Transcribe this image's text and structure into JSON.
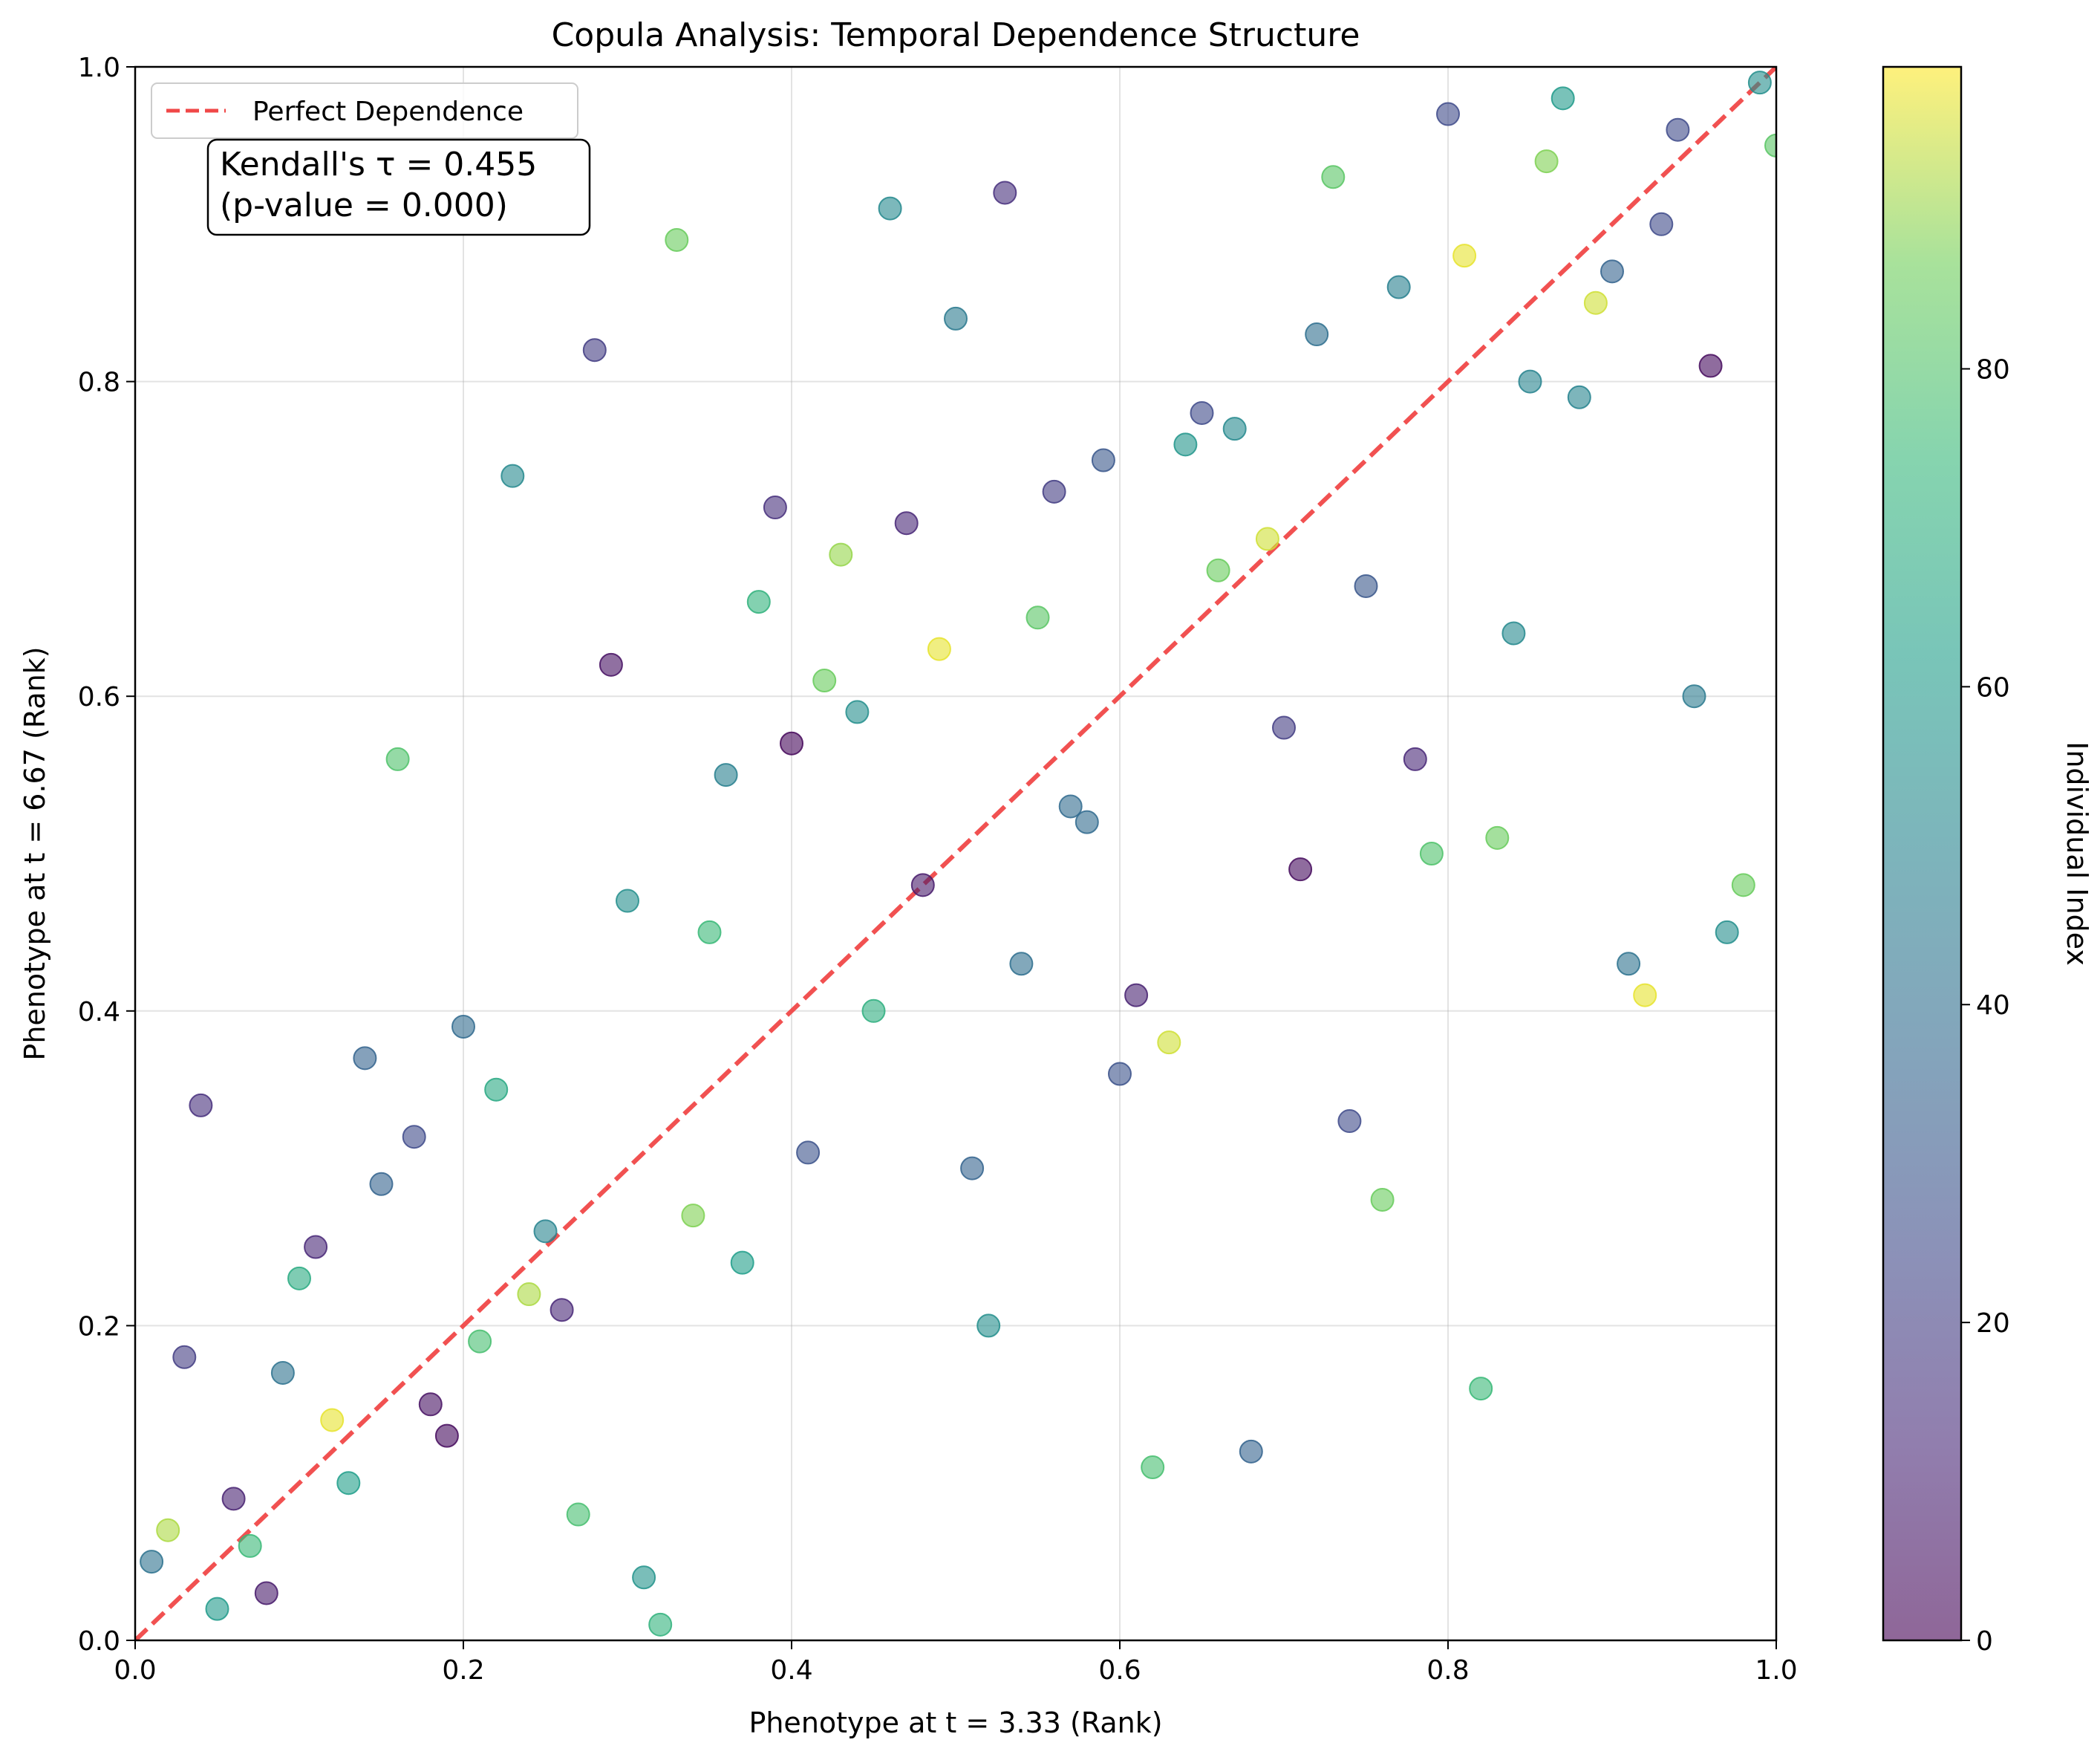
{
  "chart_data": {
    "type": "scatter",
    "title": "Copula Analysis: Temporal Dependence Structure",
    "xlabel": "Phenotype at t = 3.33 (Rank)",
    "ylabel": "Phenotype at t = 6.67 (Rank)",
    "xlim": [
      0,
      1
    ],
    "ylim": [
      0,
      1
    ],
    "xticks": [
      "0.0",
      "0.2",
      "0.4",
      "0.6",
      "0.8",
      "1.0"
    ],
    "yticks": [
      "0.0",
      "0.2",
      "0.4",
      "0.6",
      "0.8",
      "1.0"
    ],
    "grid": true,
    "legend": {
      "position": "top-left",
      "entries": [
        "Perfect Dependence"
      ]
    },
    "annotation": {
      "line1": "Kendall's τ = 0.455",
      "line2": "(p-value = 0.000)"
    },
    "colorbar": {
      "label": "Individual Index",
      "range": [
        0,
        99
      ],
      "ticks": [
        "0",
        "20",
        "40",
        "60",
        "80"
      ],
      "colormap": "viridis"
    },
    "reference_line": {
      "name": "Perfect Dependence",
      "x": [
        0,
        1
      ],
      "y": [
        0,
        1
      ],
      "color": "#f04848",
      "style": "dashed"
    },
    "points": [
      {
        "x": 0.01,
        "y": 0.05,
        "c": 42
      },
      {
        "x": 0.02,
        "y": 0.07,
        "c": 92
      },
      {
        "x": 0.03,
        "y": 0.18,
        "c": 20
      },
      {
        "x": 0.04,
        "y": 0.34,
        "c": 15
      },
      {
        "x": 0.05,
        "y": 0.02,
        "c": 60
      },
      {
        "x": 0.06,
        "y": 0.09,
        "c": 10
      },
      {
        "x": 0.07,
        "y": 0.06,
        "c": 75
      },
      {
        "x": 0.08,
        "y": 0.03,
        "c": 8
      },
      {
        "x": 0.09,
        "y": 0.17,
        "c": 42
      },
      {
        "x": 0.1,
        "y": 0.23,
        "c": 68
      },
      {
        "x": 0.11,
        "y": 0.25,
        "c": 12
      },
      {
        "x": 0.12,
        "y": 0.14,
        "c": 97
      },
      {
        "x": 0.13,
        "y": 0.1,
        "c": 62
      },
      {
        "x": 0.14,
        "y": 0.37,
        "c": 35
      },
      {
        "x": 0.15,
        "y": 0.29,
        "c": 35
      },
      {
        "x": 0.16,
        "y": 0.56,
        "c": 80
      },
      {
        "x": 0.17,
        "y": 0.32,
        "c": 25
      },
      {
        "x": 0.18,
        "y": 0.15,
        "c": 5
      },
      {
        "x": 0.19,
        "y": 0.13,
        "c": 3
      },
      {
        "x": 0.2,
        "y": 0.39,
        "c": 38
      },
      {
        "x": 0.21,
        "y": 0.19,
        "c": 78
      },
      {
        "x": 0.22,
        "y": 0.35,
        "c": 67
      },
      {
        "x": 0.23,
        "y": 0.74,
        "c": 52
      },
      {
        "x": 0.24,
        "y": 0.22,
        "c": 92
      },
      {
        "x": 0.25,
        "y": 0.26,
        "c": 50
      },
      {
        "x": 0.26,
        "y": 0.21,
        "c": 12
      },
      {
        "x": 0.27,
        "y": 0.08,
        "c": 78
      },
      {
        "x": 0.28,
        "y": 0.82,
        "c": 20
      },
      {
        "x": 0.29,
        "y": 0.62,
        "c": 5
      },
      {
        "x": 0.3,
        "y": 0.47,
        "c": 55
      },
      {
        "x": 0.31,
        "y": 0.04,
        "c": 57
      },
      {
        "x": 0.32,
        "y": 0.01,
        "c": 72
      },
      {
        "x": 0.33,
        "y": 0.89,
        "c": 85
      },
      {
        "x": 0.34,
        "y": 0.27,
        "c": 88
      },
      {
        "x": 0.35,
        "y": 0.45,
        "c": 75
      },
      {
        "x": 0.36,
        "y": 0.55,
        "c": 48
      },
      {
        "x": 0.37,
        "y": 0.24,
        "c": 62
      },
      {
        "x": 0.38,
        "y": 0.66,
        "c": 72
      },
      {
        "x": 0.39,
        "y": 0.72,
        "c": 15
      },
      {
        "x": 0.4,
        "y": 0.57,
        "c": 2
      },
      {
        "x": 0.41,
        "y": 0.31,
        "c": 28
      },
      {
        "x": 0.42,
        "y": 0.61,
        "c": 85
      },
      {
        "x": 0.43,
        "y": 0.69,
        "c": 90
      },
      {
        "x": 0.44,
        "y": 0.59,
        "c": 55
      },
      {
        "x": 0.45,
        "y": 0.4,
        "c": 70
      },
      {
        "x": 0.46,
        "y": 0.91,
        "c": 52
      },
      {
        "x": 0.47,
        "y": 0.71,
        "c": 12
      },
      {
        "x": 0.48,
        "y": 0.48,
        "c": 8
      },
      {
        "x": 0.49,
        "y": 0.63,
        "c": 97
      },
      {
        "x": 0.5,
        "y": 0.84,
        "c": 45
      },
      {
        "x": 0.51,
        "y": 0.3,
        "c": 35
      },
      {
        "x": 0.52,
        "y": 0.2,
        "c": 55
      },
      {
        "x": 0.53,
        "y": 0.92,
        "c": 15
      },
      {
        "x": 0.54,
        "y": 0.43,
        "c": 40
      },
      {
        "x": 0.55,
        "y": 0.65,
        "c": 82
      },
      {
        "x": 0.56,
        "y": 0.73,
        "c": 20
      },
      {
        "x": 0.57,
        "y": 0.53,
        "c": 38
      },
      {
        "x": 0.58,
        "y": 0.52,
        "c": 38
      },
      {
        "x": 0.59,
        "y": 0.75,
        "c": 30
      },
      {
        "x": 0.6,
        "y": 0.36,
        "c": 28
      },
      {
        "x": 0.61,
        "y": 0.41,
        "c": 10
      },
      {
        "x": 0.62,
        "y": 0.11,
        "c": 78
      },
      {
        "x": 0.63,
        "y": 0.38,
        "c": 95
      },
      {
        "x": 0.64,
        "y": 0.76,
        "c": 58
      },
      {
        "x": 0.65,
        "y": 0.78,
        "c": 25
      },
      {
        "x": 0.66,
        "y": 0.68,
        "c": 85
      },
      {
        "x": 0.67,
        "y": 0.77,
        "c": 52
      },
      {
        "x": 0.68,
        "y": 0.12,
        "c": 35
      },
      {
        "x": 0.69,
        "y": 0.7,
        "c": 95
      },
      {
        "x": 0.7,
        "y": 0.58,
        "c": 20
      },
      {
        "x": 0.71,
        "y": 0.49,
        "c": 3
      },
      {
        "x": 0.72,
        "y": 0.83,
        "c": 40
      },
      {
        "x": 0.73,
        "y": 0.93,
        "c": 82
      },
      {
        "x": 0.74,
        "y": 0.33,
        "c": 25
      },
      {
        "x": 0.75,
        "y": 0.67,
        "c": 30
      },
      {
        "x": 0.76,
        "y": 0.28,
        "c": 85
      },
      {
        "x": 0.77,
        "y": 0.86,
        "c": 48
      },
      {
        "x": 0.78,
        "y": 0.56,
        "c": 12
      },
      {
        "x": 0.79,
        "y": 0.5,
        "c": 80
      },
      {
        "x": 0.8,
        "y": 0.97,
        "c": 25
      },
      {
        "x": 0.81,
        "y": 0.88,
        "c": 97
      },
      {
        "x": 0.82,
        "y": 0.16,
        "c": 75
      },
      {
        "x": 0.83,
        "y": 0.51,
        "c": 85
      },
      {
        "x": 0.84,
        "y": 0.64,
        "c": 52
      },
      {
        "x": 0.85,
        "y": 0.8,
        "c": 50
      },
      {
        "x": 0.86,
        "y": 0.94,
        "c": 88
      },
      {
        "x": 0.87,
        "y": 0.98,
        "c": 60
      },
      {
        "x": 0.88,
        "y": 0.79,
        "c": 50
      },
      {
        "x": 0.89,
        "y": 0.85,
        "c": 95
      },
      {
        "x": 0.9,
        "y": 0.87,
        "c": 35
      },
      {
        "x": 0.91,
        "y": 0.43,
        "c": 42
      },
      {
        "x": 0.92,
        "y": 0.41,
        "c": 97
      },
      {
        "x": 0.93,
        "y": 0.9,
        "c": 25
      },
      {
        "x": 0.94,
        "y": 0.96,
        "c": 25
      },
      {
        "x": 0.95,
        "y": 0.6,
        "c": 45
      },
      {
        "x": 0.96,
        "y": 0.81,
        "c": 3
      },
      {
        "x": 0.97,
        "y": 0.45,
        "c": 55
      },
      {
        "x": 0.98,
        "y": 0.48,
        "c": 85
      },
      {
        "x": 0.99,
        "y": 0.99,
        "c": 55
      },
      {
        "x": 1.0,
        "y": 0.95,
        "c": 82
      }
    ]
  }
}
